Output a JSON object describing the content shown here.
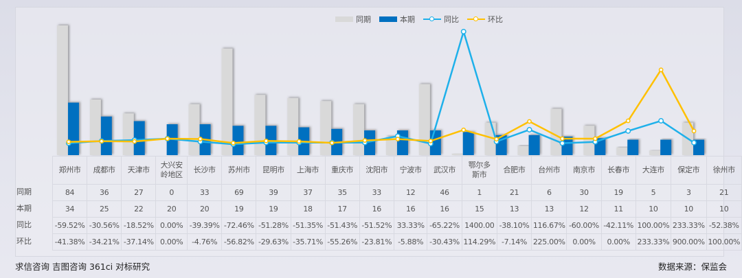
{
  "legend": {
    "items": [
      {
        "label": "同期",
        "color": "#d9d9d9",
        "kind": "bar"
      },
      {
        "label": "本期",
        "color": "#0070c0",
        "kind": "bar"
      },
      {
        "label": "同比",
        "color": "#1eb0ea",
        "kind": "line"
      },
      {
        "label": "环比",
        "color": "#ffc000",
        "kind": "line"
      }
    ]
  },
  "table": {
    "row_labels": [
      "同期",
      "本期",
      "同比",
      "环比"
    ],
    "cities": [
      "郑州市",
      "成都市",
      "天津市",
      "大兴安岭地区",
      "长沙市",
      "苏州市",
      "昆明市",
      "上海市",
      "重庆市",
      "沈阳市",
      "宁波市",
      "武汉市",
      "鄂尔多斯市",
      "合肥市",
      "台州市",
      "南京市",
      "长春市",
      "大连市",
      "保定市",
      "徐州市"
    ],
    "prior": [
      "84",
      "36",
      "27",
      "0",
      "33",
      "69",
      "39",
      "37",
      "35",
      "33",
      "12",
      "46",
      "1",
      "21",
      "6",
      "30",
      "19",
      "5",
      "3",
      "21"
    ],
    "current": [
      "34",
      "25",
      "22",
      "20",
      "20",
      "19",
      "19",
      "18",
      "17",
      "16",
      "16",
      "16",
      "15",
      "13",
      "13",
      "12",
      "11",
      "10",
      "10",
      "10"
    ],
    "yoy": [
      "-59.52%",
      "-30.56%",
      "-18.52%",
      "0.00%",
      "-39.39%",
      "-72.46%",
      "-51.28%",
      "-51.35%",
      "-51.43%",
      "-51.52%",
      "33.33%",
      "-65.22%",
      "1400.00",
      "-38.10%",
      "116.67%",
      "-60.00%",
      "-42.11%",
      "100.00%",
      "233.33%",
      "-52.38%"
    ],
    "mom": [
      "-41.38%",
      "-34.21%",
      "-37.14%",
      "0.00%",
      "-4.76%",
      "-56.82%",
      "-29.63%",
      "-35.71%",
      "-55.26%",
      "-23.81%",
      "-5.88%",
      "-30.43%",
      "114.29%",
      "-7.14%",
      "225.00%",
      "0.00%",
      "0.00%",
      "233.33%",
      "900.00%",
      "100.00%"
    ]
  },
  "footer": {
    "left": "求信咨询 吉图咨询 361ci 对标研究",
    "right": "数据来源：保监会"
  },
  "chart_data": {
    "type": "bar",
    "title": "",
    "categories": [
      "郑州市",
      "成都市",
      "天津市",
      "大兴安岭地区",
      "长沙市",
      "苏州市",
      "昆明市",
      "上海市",
      "重庆市",
      "沈阳市",
      "宁波市",
      "武汉市",
      "鄂尔多斯市",
      "合肥市",
      "台州市",
      "南京市",
      "长春市",
      "大连市",
      "保定市",
      "徐州市"
    ],
    "series": [
      {
        "name": "同期",
        "type": "bar",
        "color": "#d9d9d9",
        "values": [
          84,
          36,
          27,
          0,
          33,
          69,
          39,
          37,
          35,
          33,
          12,
          46,
          1,
          21,
          6,
          30,
          19,
          5,
          3,
          21
        ]
      },
      {
        "name": "本期",
        "type": "bar",
        "color": "#0070c0",
        "values": [
          34,
          25,
          22,
          20,
          20,
          19,
          19,
          18,
          17,
          16,
          16,
          16,
          15,
          13,
          13,
          12,
          11,
          10,
          10,
          10
        ]
      },
      {
        "name": "同比",
        "type": "line",
        "axis": "secondary",
        "unit": "%",
        "color": "#1eb0ea",
        "values": [
          -59.52,
          -30.56,
          -18.52,
          0.0,
          -39.39,
          -72.46,
          -51.28,
          -51.35,
          -51.43,
          -51.52,
          33.33,
          -65.22,
          1400.0,
          -38.1,
          116.67,
          -60.0,
          -42.11,
          100.0,
          233.33,
          -52.38
        ]
      },
      {
        "name": "环比",
        "type": "line",
        "axis": "secondary",
        "unit": "%",
        "color": "#ffc000",
        "values": [
          -41.38,
          -34.21,
          -37.14,
          0.0,
          -4.76,
          -56.82,
          -29.63,
          -35.71,
          -55.26,
          -23.81,
          -5.88,
          -30.43,
          114.29,
          -7.14,
          225.0,
          0.0,
          0.0,
          233.33,
          900.0,
          100.0
        ]
      }
    ],
    "xlabel": "",
    "ylabel": "",
    "grid": false,
    "legend_position": "top",
    "data_table": true
  }
}
